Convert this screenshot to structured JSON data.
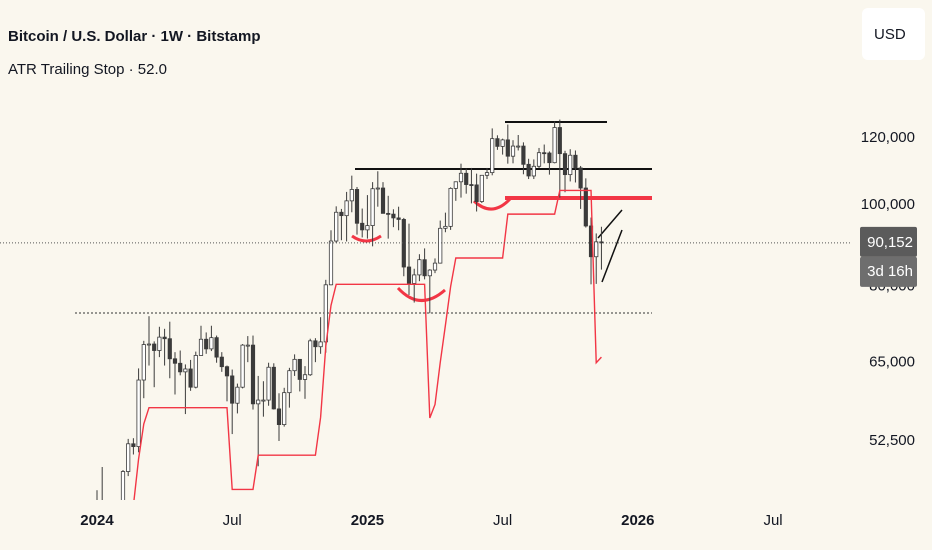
{
  "chart_data": {
    "type": "candlestick",
    "title": "Bitcoin / U.S. Dollar · 1W · Bitstamp",
    "currency": "USD",
    "countdown": "3d 16h",
    "current_price": {
      "value": 90152,
      "label": "90,152"
    },
    "log_y": true,
    "grid": false,
    "up_color": "#ffffff",
    "down_color": "#3b3b3b",
    "wick_color": "#3b3b3b",
    "xlim": [
      -18.65,
      144.8
    ],
    "xticks": [
      {
        "value": 0,
        "label": "2024"
      },
      {
        "value": 26,
        "label": "Jul"
      },
      {
        "value": 52,
        "label": "2025"
      },
      {
        "value": 78,
        "label": "Jul"
      },
      {
        "value": 104,
        "label": "2026"
      },
      {
        "value": 130,
        "label": "Jul"
      }
    ],
    "ylim": [
      44690,
      174900
    ],
    "yticks": [
      {
        "value": 52500,
        "label": "52,500"
      },
      {
        "value": 65000,
        "label": "65,000"
      },
      {
        "value": 80000,
        "label": "80,000"
      },
      {
        "value": 100000,
        "label": "100,000"
      },
      {
        "value": 120000,
        "label": "120,000"
      }
    ],
    "x": [
      0,
      1,
      2,
      3,
      4,
      5,
      6,
      7,
      8,
      9,
      10,
      11,
      12,
      13,
      14,
      15,
      16,
      17,
      18,
      19,
      20,
      21,
      22,
      23,
      24,
      25,
      26,
      27,
      28,
      29,
      30,
      31,
      32,
      33,
      34,
      35,
      36,
      37,
      38,
      39,
      40,
      41,
      42,
      43,
      44,
      45,
      46,
      47,
      48,
      49,
      50,
      51,
      52,
      53,
      54,
      55,
      56,
      57,
      58,
      59,
      60,
      61,
      62,
      63,
      64,
      65,
      66,
      67,
      68,
      69,
      70,
      71,
      72,
      73,
      74,
      75,
      76,
      77,
      78,
      79,
      80,
      81,
      82,
      83,
      84,
      85,
      86,
      87,
      88,
      89,
      90,
      91,
      92,
      93,
      94,
      95,
      96,
      97
    ],
    "open": [
      42300,
      43900,
      41700,
      39900,
      42000,
      42600,
      48300,
      52100,
      51700,
      62000,
      68300,
      68400,
      67200,
      69700,
      69400,
      65700,
      64900,
      63400,
      63900,
      60800,
      66300,
      69300,
      67500,
      69600,
      66000,
      64300,
      62700,
      58200,
      60800,
      68200,
      68200,
      58100,
      58700,
      58700,
      64200,
      57300,
      54900,
      59900,
      63600,
      65600,
      62100,
      62900,
      69000,
      67900,
      68800,
      80400,
      90600,
      98000,
      97100,
      101100,
      104300,
      95100,
      93400,
      94500,
      104500,
      104700,
      97700,
      97500,
      96500,
      96100,
      84400,
      80700,
      82600,
      86100,
      82400,
      83700,
      85300,
      93800,
      94300,
      104600,
      106500,
      109000,
      105700,
      105600,
      100900,
      108400,
      109200,
      119800,
      117300,
      119400,
      114200,
      117400,
      117400,
      111700,
      108200,
      111100,
      115300,
      115200,
      112200,
      123500,
      115000,
      108600,
      114500,
      110600,
      104700,
      94400,
      86800,
      90400
    ],
    "high": [
      45900,
      48900,
      43500,
      42800,
      43800,
      48500,
      52800,
      52900,
      64000,
      69000,
      73800,
      68900,
      71700,
      71300,
      72700,
      66900,
      67200,
      64700,
      65500,
      67000,
      71900,
      70600,
      71900,
      70000,
      66900,
      64500,
      63800,
      61400,
      68400,
      69900,
      70000,
      62700,
      61800,
      65000,
      64900,
      59800,
      60700,
      64100,
      66500,
      65600,
      64400,
      69400,
      69500,
      73600,
      81500,
      93300,
      99600,
      98900,
      103600,
      108300,
      105000,
      99000,
      102700,
      106400,
      109600,
      106400,
      102500,
      98800,
      99500,
      96500,
      95000,
      84000,
      87400,
      88800,
      83900,
      86400,
      95800,
      97900,
      104900,
      106600,
      111900,
      110400,
      110600,
      108900,
      108500,
      110600,
      123200,
      120900,
      119800,
      124500,
      119300,
      121000,
      118600,
      113400,
      113200,
      116800,
      117900,
      115700,
      125600,
      126200,
      115900,
      116400,
      116000,
      111200,
      107500,
      96600,
      92500,
      94200
    ],
    "low": [
      40700,
      41500,
      38500,
      39500,
      41800,
      42500,
      47700,
      50600,
      50900,
      59000,
      64500,
      60800,
      66000,
      64500,
      62300,
      59600,
      62800,
      56500,
      60200,
      60600,
      66300,
      66600,
      67100,
      65000,
      63400,
      58500,
      53500,
      56600,
      60600,
      65100,
      57200,
      49000,
      56100,
      57800,
      57200,
      52500,
      54600,
      57500,
      62700,
      60100,
      58900,
      62700,
      65100,
      66600,
      66800,
      80300,
      90100,
      90800,
      90500,
      98000,
      92200,
      91500,
      91200,
      89300,
      99500,
      97800,
      91200,
      94100,
      93300,
      82300,
      78200,
      76600,
      81200,
      81600,
      74400,
      83000,
      85200,
      92800,
      93400,
      101100,
      102000,
      103100,
      100400,
      98200,
      100500,
      107300,
      108400,
      116200,
      114700,
      111900,
      112000,
      116000,
      108700,
      107300,
      107300,
      110600,
      112000,
      108600,
      112000,
      102000,
      103500,
      106600,
      106300,
      98900,
      94000,
      80500,
      80600,
      83800
    ],
    "close": [
      43900,
      41700,
      39900,
      42000,
      42600,
      48300,
      52100,
      51700,
      62000,
      68300,
      68400,
      67200,
      69700,
      69400,
      65700,
      64900,
      63400,
      63900,
      60800,
      66300,
      69300,
      67500,
      69600,
      66000,
      64300,
      62700,
      58200,
      60800,
      68200,
      68200,
      58100,
      58700,
      58700,
      64200,
      57300,
      54900,
      59900,
      63600,
      65600,
      62100,
      62900,
      69000,
      67900,
      68800,
      80400,
      90600,
      98000,
      97100,
      101100,
      104300,
      95100,
      93400,
      94500,
      104500,
      104700,
      97700,
      97500,
      96500,
      96100,
      84400,
      80700,
      82600,
      86100,
      82400,
      83700,
      85300,
      93800,
      94300,
      104600,
      106500,
      109000,
      105700,
      105600,
      100900,
      108400,
      109200,
      119800,
      117300,
      119400,
      114200,
      117400,
      117400,
      111700,
      108200,
      111100,
      115300,
      115200,
      112200,
      123500,
      115000,
      108600,
      114500,
      110600,
      104700,
      94400,
      86800,
      90400,
      90152
    ],
    "series": [
      {
        "name": "ATR Trailing Stop · 52.0",
        "color": "#f23645",
        "values": [
          null,
          null,
          null,
          null,
          null,
          null,
          null,
          44000,
          50000,
          55000,
          57500,
          57500,
          57500,
          57500,
          57500,
          57500,
          57500,
          57500,
          57500,
          57500,
          57500,
          57500,
          57500,
          57500,
          57500,
          57500,
          46000,
          46000,
          46000,
          46000,
          46000,
          50500,
          50500,
          50500,
          50500,
          50500,
          50500,
          50500,
          50500,
          50500,
          50500,
          50500,
          50500,
          56000,
          68000,
          76000,
          80500,
          80500,
          80500,
          80500,
          80500,
          80500,
          80500,
          80500,
          80500,
          80500,
          80500,
          80500,
          80500,
          80500,
          80500,
          80500,
          80500,
          80500,
          55900,
          58000,
          65000,
          72000,
          80000,
          86500,
          86500,
          86500,
          86500,
          86500,
          86500,
          86500,
          86500,
          86500,
          86500,
          97500,
          97500,
          97500,
          97500,
          97500,
          97500,
          97500,
          97500,
          97500,
          97500,
          104000,
          104000,
          104000,
          104000,
          104000,
          104000,
          104000,
          65000,
          66000
        ]
      }
    ]
  }
}
